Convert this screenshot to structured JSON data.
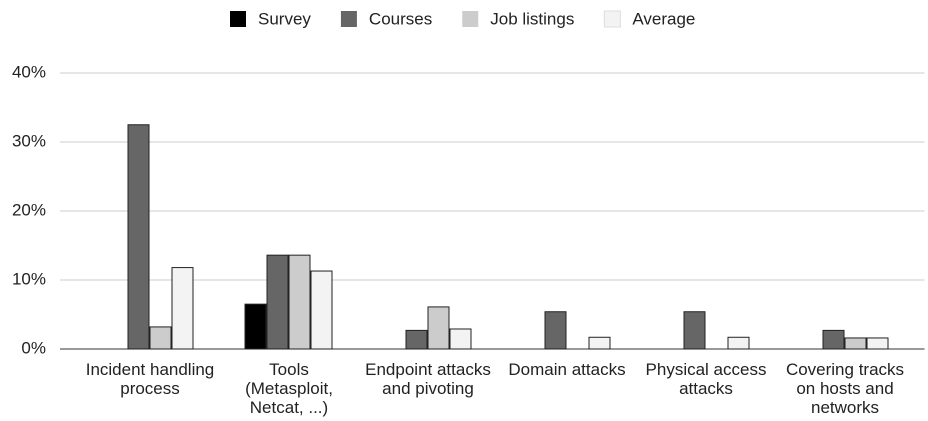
{
  "chart_data": {
    "type": "bar",
    "categories": [
      "Incident handling process",
      "Tools (Metasploit, Netcat, ...)",
      "Endpoint attacks and pivoting",
      "Domain attacks",
      "Physical access attacks",
      "Covering tracks on hosts and networks"
    ],
    "series": [
      {
        "name": "Survey",
        "color": "#000000",
        "values": [
          0,
          6.5,
          0,
          0,
          0,
          0
        ]
      },
      {
        "name": "Courses",
        "color": "#666666",
        "values": [
          32.5,
          13.6,
          2.7,
          5.4,
          5.4,
          2.7
        ]
      },
      {
        "name": "Job listings",
        "color": "#cccccc",
        "values": [
          3.2,
          13.6,
          6.1,
          0,
          0,
          1.6
        ]
      },
      {
        "name": "Average",
        "color": "#f3f3f3",
        "values": [
          11.8,
          11.3,
          2.9,
          1.7,
          1.7,
          1.6
        ]
      }
    ],
    "ylim": [
      0,
      40
    ],
    "yticks": [
      {
        "value": 0,
        "label": "0%"
      },
      {
        "value": 10,
        "label": "10%"
      },
      {
        "value": 20,
        "label": "20%"
      },
      {
        "value": 30,
        "label": "30%"
      },
      {
        "value": 40,
        "label": "40%"
      }
    ],
    "grid": true,
    "legend": "top"
  }
}
